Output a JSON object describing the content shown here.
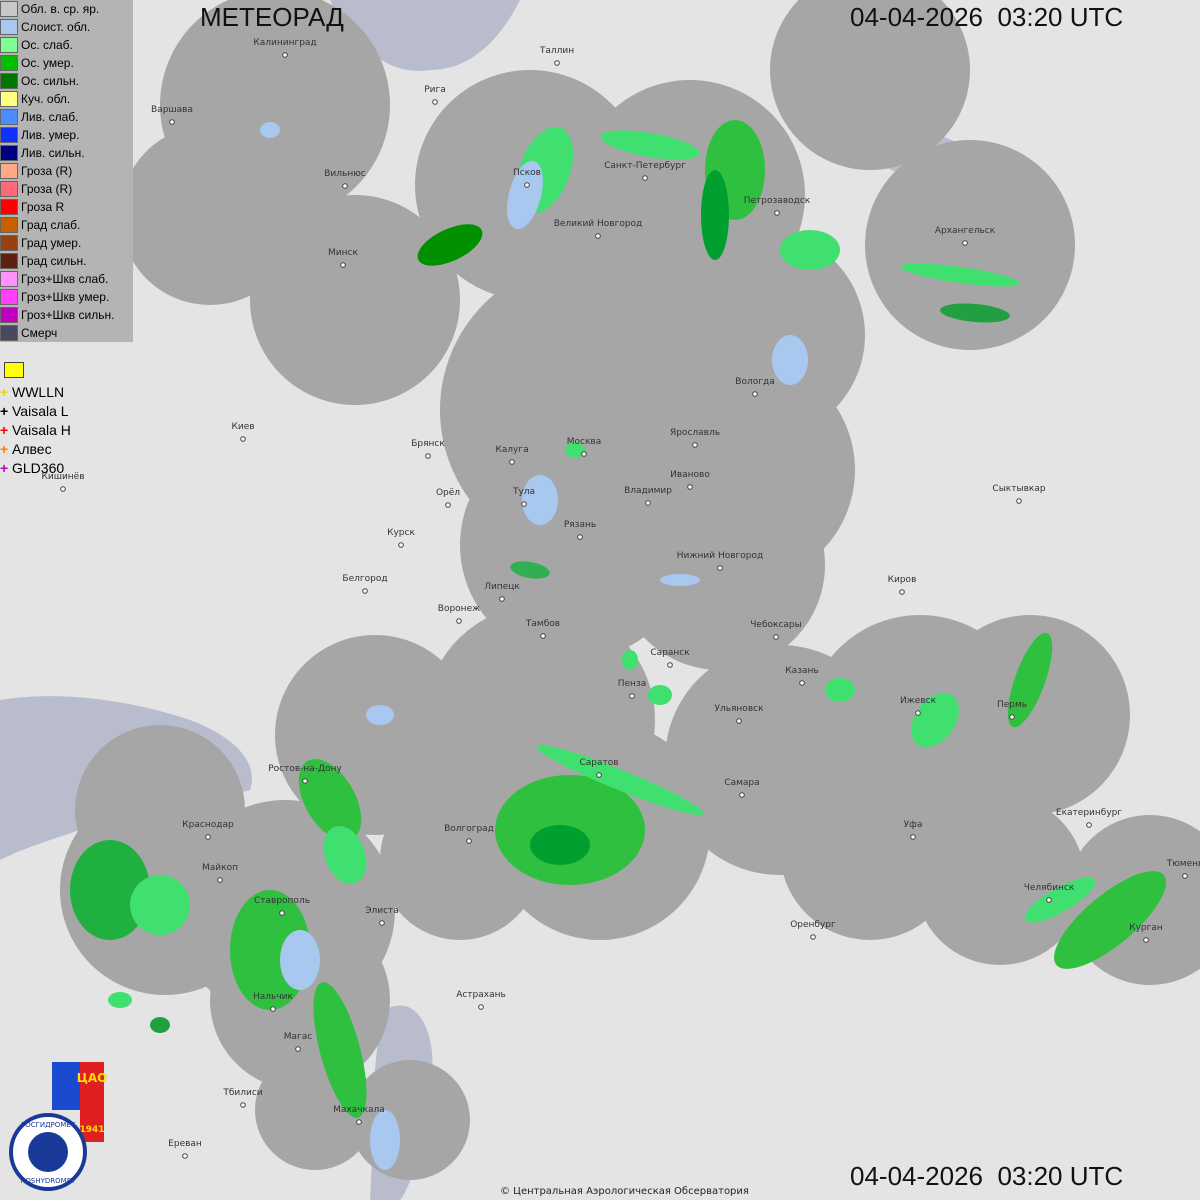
{
  "header": {
    "title": "МЕТЕОРАД",
    "timestamp": "04-04-2026  03:20 UTC"
  },
  "footer": {
    "timestamp": "04-04-2026  03:20 UTC",
    "copyright": "© Центральная Аэрологическая Обсерватория"
  },
  "legend": [
    {
      "label": "Обл. в. ср. яр.",
      "color": "#c8c8c8"
    },
    {
      "label": "Слоист. обл.",
      "color": "#a8c8f0"
    },
    {
      "label": "Ос. слаб.",
      "color": "#80ff90"
    },
    {
      "label": "Ос. умер.",
      "color": "#00c000"
    },
    {
      "label": "Ос. сильн.",
      "color": "#007800"
    },
    {
      "label": "Куч. обл.",
      "color": "#ffff80"
    },
    {
      "label": "Лив. слаб.",
      "color": "#4a8cff"
    },
    {
      "label": "Лив. умер.",
      "color": "#1030ff"
    },
    {
      "label": "Лив. сильн.",
      "color": "#000080"
    },
    {
      "label": "Гроза (R)",
      "color": "#ffa888"
    },
    {
      "label": "Гроза (R)",
      "color": "#ff6878"
    },
    {
      "label": "Гроза R",
      "color": "#ff0000"
    },
    {
      "label": "Град слаб.",
      "color": "#c86000"
    },
    {
      "label": "Град умер.",
      "color": "#984010"
    },
    {
      "label": "Град сильн.",
      "color": "#602010"
    },
    {
      "label": "Гроз+Шкв слаб.",
      "color": "#ff90ff"
    },
    {
      "label": "Гроз+Шкв умер.",
      "color": "#ff40ff"
    },
    {
      "label": "Гроз+Шкв сильн.",
      "color": "#c000c0"
    },
    {
      "label": "Смерч",
      "color": "#484860"
    }
  ],
  "lightning": [
    {
      "label": "WWLLN",
      "color": "#e8d800"
    },
    {
      "label": "Vaisala L",
      "color": "#000000"
    },
    {
      "label": "Vaisala H",
      "color": "#ff0000"
    },
    {
      "label": "Алвес",
      "color": "#ff8000"
    },
    {
      "label": "GLD360",
      "color": "#c000c0"
    }
  ],
  "logo": {
    "name": "ЦАО",
    "year": "1941",
    "org_ru": "РОСГИДРОМЕТ",
    "org_en": "ROSHYDROMET"
  },
  "cities": [
    "Калининград",
    "Таллин",
    "Рига",
    "Варшава",
    "Вильнюс",
    "Псков",
    "Санкт-Петербург",
    "Петрозаводск",
    "Великий Новгород",
    "Архангельск",
    "Минск",
    "Вологда",
    "Брянск",
    "Калуга",
    "Москва",
    "Ярославль",
    "Киев",
    "Иваново",
    "Кишинёв",
    "Орёл",
    "Тула",
    "Владимир",
    "Сыктывкар",
    "Рязань",
    "Курск",
    "Нижний Новгород",
    "Белгород",
    "Липецк",
    "Киров",
    "Воронеж",
    "Тамбов",
    "Чебоксары",
    "Саранск",
    "Казань",
    "Пенза",
    "Ижевск",
    "Пермь",
    "Ульяновск",
    "Ростов-на-Дону",
    "Саратов",
    "Самара",
    "Екатеринбург",
    "Краснодар",
    "Уфа",
    "Волгоград",
    "Майкоп",
    "Челябинск",
    "Тюмень",
    "Ставрополь",
    "Элиста",
    "Оренбург",
    "Курган",
    "Нальчик",
    "Астрахань",
    "Магас",
    "Махачкала",
    "Тбилиси",
    "Ереван"
  ]
}
